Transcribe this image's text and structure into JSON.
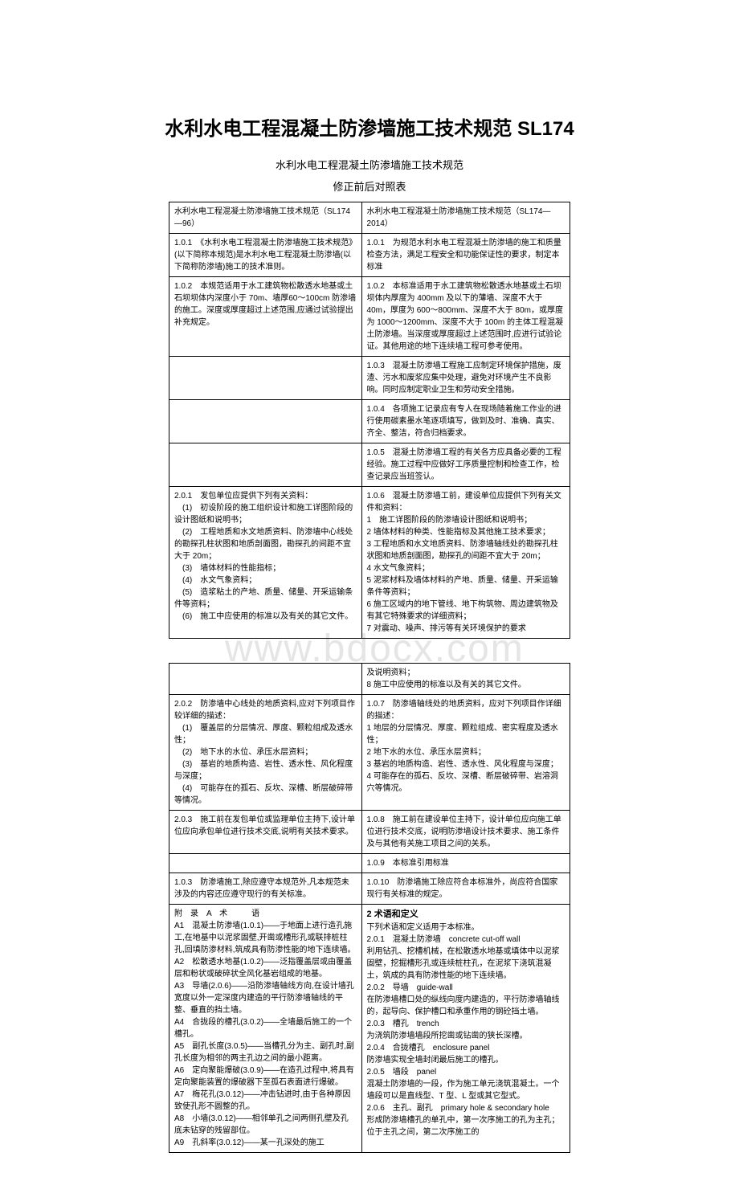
{
  "title": "水利水电工程混凝土防渗墙施工技术规范 SL174",
  "subtitle": "水利水电工程混凝土防渗墙施工技术规范",
  "caption": "修正前后对照表",
  "watermark": "www.bdocx.com",
  "table1": {
    "rows": [
      [
        "水利水电工程混凝土防渗墙施工技术规范（SL174—96）",
        "水利水电工程混凝土防渗墙施工技术规范（SL174—2014）"
      ],
      [
        "1.0.1　《水利水电工程混凝土防渗墙施工技术规范》(以下简称本规范)是水利水电工程混凝土防渗墙(以下简称防渗墙)施工的技术准则。",
        "1.0.1　为规范水利水电工程混凝土防渗墙的施工和质量检查方法，满足工程安全和功能保证性的要求，制定本标准"
      ],
      [
        "1.0.2　本规范适用于水工建筑物松散透水地基或土石坝坝体内深度小于 70m、墙厚60～100cm 防渗墙的施工。深度或厚度超过上述范围,应通过试验提出补充规定。",
        "1.0.2　本标准适用于水工建筑物松散透水地基或土石坝坝体内厚度为 400mm 及以下的薄墙、深度不大于 40m，厚度为 600～800mm、深度不大于 80m，或厚度为 1000～1200mm、深度不大于 100m 的主体工程混凝土防渗墙。当深度或厚度超过上述范围时,应进行试验论证。其他用途的地下连续墙工程可参考使用。"
      ],
      [
        "",
        "1.0.3　混凝土防渗墙工程施工应制定环境保护措施，废渣、污水和废浆应集中处理，避免对环境产生不良影响。同时应制定职业卫生和劳动安全措施。"
      ],
      [
        "",
        "1.0.4　各项施工记录应有专人在现场随着施工作业的进行使用碳素墨水笔逐项填写，做到及时、准确、真实、齐全、整洁，符合归档要求。"
      ],
      [
        "",
        "1.0.5　混凝土防渗墙工程的有关各方应具备必要的工程经验。施工过程中应做好工序质量控制和检查工作，检查记录应当班签认。"
      ],
      [
        "2.0.1　发包单位应提供下列有关资料：\n　(1)　初设阶段的施工组织设计和施工详图阶段的设计图纸和说明书；\n　(2)　工程地质和水文地质资料、防渗墙中心线处的勘探孔柱状图和地质剖面图，勘探孔的间距不宜大于 20m；\n　(3)　墙体材料的性能指标；\n　(4)　水文气象资料；\n　(5)　造浆粘土的产地、质量、储量、开采运输条件等资料；\n　(6)　施工中应使用的标准以及有关的其它文件。",
        "1.0.6　混凝土防渗墙工前，建设单位应提供下列有关文件和资料：\n1　施工详图阶段的防渗墙设计图纸和说明书；\n2 墙体材料的种类、性能指标及其他施工技术要求；\n3 工程地质和水文地质资料、防渗墙轴线处的勘探孔柱状图和地质剖面图，勘探孔的间距不宜大于 20m；\n4 水文气象资料；\n5 泥浆材料及墙体材料的产地、质量、储量、开采运输条件等资料；\n6 施工区域内的地下管线、地下构筑物、周边建筑物及有其它特殊要求的详细资料；\n7 对震动、噪声、排污等有关环境保护的要求"
      ]
    ]
  },
  "table2": {
    "rows": [
      [
        "",
        "及说明资料；\n8 施工中应使用的标准以及有关的其它文件。"
      ],
      [
        "2.0.2　防渗墙中心线处的地质资料,应对下列项目作较详细的描述：\n　(1)　覆盖层的分层情况、厚度、颗粒组成及透水性；\n　(2)　地下水的水位、承压水层资料；\n　(3)　基岩的地质构造、岩性、透水性、风化程度与深度；\n　(4)　可能存在的孤石、反坎、深槽、断层破碎带等情况。",
        "1.0.7　防渗墙轴线处的地质资料，应对下列项目作详细的描述：\n1 地层的分层情况、厚度、颗粒组成、密实程度及透水性；\n2 地下水的水位、承压水层资料；\n3 基岩的地质构造、岩性、透水性、风化程度与深度；\n4 可能存在的孤石、反坎、深槽、断层破碎带、岩溶洞穴等情况。"
      ],
      [
        "2.0.3　施工前在发包单位或监理单位主持下,设计单位应向承包单位进行技术交底,说明有关技术要求。",
        "1.0.8　施工前在建设单位主持下，设计单位应向施工单位进行技术交底，说明防渗墙设计技术要求、施工条件及与其他有关施工项目之间的关系。"
      ],
      [
        "",
        "1.0.9　本标准引用标准"
      ],
      [
        "1.0.3　防渗墙施工,除应遵守本规范外,凡本规范未涉及的内容还应遵守现行的有关标准。",
        "1.0.10　防渗墙施工除应符合本标准外，尚应符合国家现行有关标准的规定。"
      ],
      [
        "附　录　A　术　　　语\nA1　混凝土防渗墙(1.0.1)——于地面上进行造孔施工,在地基中以泥浆固壁,开凿或槽形孔或联排桩柱孔,回填防渗材料,筑成具有防渗性能的地下连续墙。\nA2　松散透水地基(1.0.2)——泛指覆盖层或由覆盖层和粉状或破碎状全风化基岩组成的地基。\nA3　导墙(2.0.6)——沿防渗墙轴线方向,在设计墙孔宽度以外一定深度内建造的平行防渗墙轴线的平整、垂直的挡土墙。\nA4　合拢段的槽孔(3.0.2)——全墙最后施工的一个槽孔。\nA5　副孔长度(3.0.5)——当槽孔分为主、副孔时,副孔长度为相邻的两主孔边之间的最小距离。\nA6　定向聚能爆破(3.0.9)——在造孔过程中,将具有定向聚能装置的爆破器下至孤石表面进行爆破。\nA7　梅花孔(3.0.12)——冲击钻进时,由于各种原因致使孔形不圆整的孔。\nA8　小墙(3.0.12)——相邻单孔之间两侧孔壁及孔底未钻穿的残留部位。\nA9　孔斜率(3.0.12)——某一孔深处的施工",
        "2 术语和定义\n下列术语和定义适用于本标准。\n2.0.1　混凝土防渗墙　concrete cut-off wall\n利用钻孔、挖槽机械，在松散透水地基或填体中以泥浆固壁，挖掘槽形孔或连续桩柱孔，在泥浆下浇筑混凝土，筑成的具有防渗性能的地下连续墙。\n2.0.2　导墙　guide-wall\n在防渗墙槽口处的纵线向度内建造的，平行防渗墙轴线的，起导向、保护槽口和承重作用的钢砼挡土墙。\n2.0.3　槽孔　trench\n为浇筑防渗墙墙段所挖凿或钻凿的狭长深槽。\n2.0.4　合拢槽孔　enclosure panel\n防渗墙实现全墙封闭最后施工的槽孔。\n2.0.5　墙段　panel\n混凝土防渗墙的一段，作为施工单元浇筑混凝土。一个墙段可以是直线型、T 型、L 型或其它型式。\n2.0.6　主孔、副孔　primary hole & secondary hole\n形成防渗墙槽孔的单孔中，第一次序施工的孔为主孔；位于主孔之间，第二次序施工的"
      ]
    ]
  },
  "terms_header": "2 术语和定义"
}
